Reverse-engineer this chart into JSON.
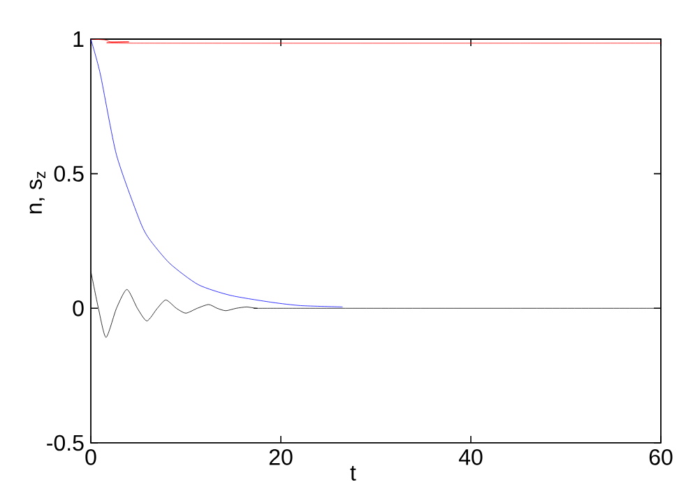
{
  "chart_data": {
    "type": "line",
    "xlabel": "t",
    "ylabel": "n, s$_{z}$",
    "xlim": [
      0,
      60
    ],
    "ylim": [
      -0.5,
      1
    ],
    "xticks": [
      0,
      20,
      40,
      60
    ],
    "yticks": [
      -0.5,
      0,
      0.5,
      1
    ],
    "marker": "none",
    "line_style": "solid",
    "series": [
      {
        "color": "#ff0000",
        "x": [
          0,
          1.5,
          2.1,
          4,
          4.5,
          60
        ],
        "values": [
          1,
          0.997,
          0.99,
          0.99,
          0.985,
          0.985
        ]
      },
      {
        "color": "#0000ff",
        "x": [
          0,
          1.0,
          2.7,
          5.1,
          6.1,
          8.3,
          11.3,
          14.7,
          19.1,
          22.1,
          26.5
        ],
        "values": [
          1,
          0.87,
          0.57,
          0.33,
          0.26,
          0.167,
          0.088,
          0.048,
          0.022,
          0.01,
          0.005
        ]
      },
      {
        "color": "#000000",
        "x": [
          0,
          0.8,
          1.6,
          2.7,
          3.8,
          4.9,
          5.9,
          7.0,
          7.9,
          9.0,
          10.0,
          11.2,
          12.4,
          13.3,
          14.2,
          15.3,
          16.4,
          17.5,
          20,
          60
        ],
        "values": [
          0.138,
          0,
          -0.108,
          0,
          0.07,
          0,
          -0.047,
          0,
          0.031,
          0,
          -0.018,
          0,
          0.014,
          0,
          -0.009,
          0,
          0.005,
          0,
          0,
          0
        ]
      }
    ]
  }
}
